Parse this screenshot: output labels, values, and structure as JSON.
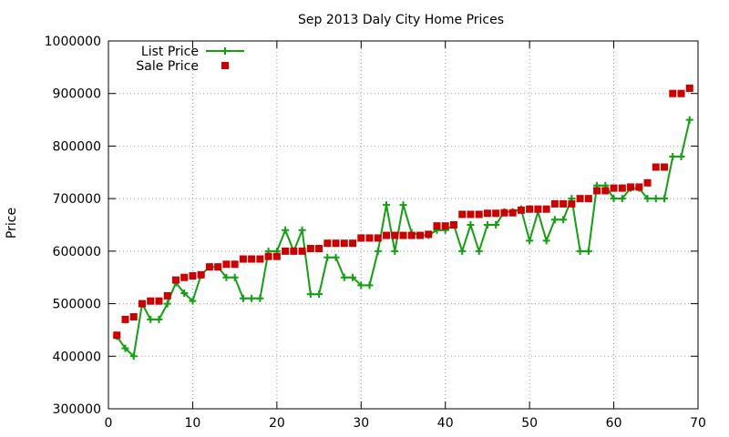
{
  "chart_data": {
    "type": "line",
    "title": "Sep 2013 Daly City Home Prices",
    "xlabel": "",
    "ylabel": "Price",
    "xlim": [
      0,
      70
    ],
    "ylim": [
      300000,
      1000000
    ],
    "xticks": [
      0,
      10,
      20,
      30,
      40,
      50,
      60,
      70
    ],
    "yticks": [
      300000,
      400000,
      500000,
      600000,
      700000,
      800000,
      900000,
      1000000
    ],
    "xtick_labels": [
      "0",
      "10",
      "20",
      "30",
      "40",
      "50",
      "60",
      "70"
    ],
    "ytick_labels": [
      "300000",
      "400000",
      "500000",
      "600000",
      "700000",
      "800000",
      "900000",
      "1000000"
    ],
    "grid": true,
    "legend_position": "top-left",
    "series": [
      {
        "name": "List Price",
        "style": "line+cross",
        "color": "#10a010",
        "x": [
          1,
          2,
          3,
          4,
          5,
          6,
          7,
          8,
          9,
          10,
          11,
          12,
          13,
          14,
          15,
          16,
          17,
          18,
          19,
          20,
          21,
          22,
          23,
          24,
          25,
          26,
          27,
          28,
          29,
          30,
          31,
          32,
          33,
          34,
          35,
          36,
          37,
          38,
          39,
          40,
          41,
          42,
          43,
          44,
          45,
          46,
          47,
          48,
          49,
          50,
          51,
          52,
          53,
          54,
          55,
          56,
          57,
          58,
          59,
          60,
          61,
          62,
          63,
          64,
          65,
          66,
          67,
          68,
          69
        ],
        "values": [
          438000,
          415000,
          400000,
          500000,
          470000,
          470000,
          500000,
          540000,
          520000,
          505000,
          555000,
          570000,
          570000,
          550000,
          550000,
          510000,
          510000,
          510000,
          600000,
          600000,
          640000,
          600000,
          640000,
          518000,
          518000,
          588000,
          588000,
          550000,
          550000,
          535000,
          535000,
          600000,
          688000,
          600000,
          688000,
          635000,
          630000,
          630000,
          640000,
          640000,
          650000,
          600000,
          650000,
          600000,
          650000,
          650000,
          675000,
          675000,
          680000,
          620000,
          675000,
          620000,
          660000,
          660000,
          700000,
          600000,
          600000,
          725000,
          725000,
          700000,
          700000,
          720000,
          720000,
          700000,
          700000,
          700000,
          780000,
          780000,
          850000
        ]
      },
      {
        "name": "Sale Price",
        "style": "square",
        "color": "#cc0000",
        "x": [
          1,
          2,
          3,
          4,
          5,
          6,
          7,
          8,
          9,
          10,
          11,
          12,
          13,
          14,
          15,
          16,
          17,
          18,
          19,
          20,
          21,
          22,
          23,
          24,
          25,
          26,
          27,
          28,
          29,
          30,
          31,
          32,
          33,
          34,
          35,
          36,
          37,
          38,
          39,
          40,
          41,
          42,
          43,
          44,
          45,
          46,
          47,
          48,
          49,
          50,
          51,
          52,
          53,
          54,
          55,
          56,
          57,
          58,
          59,
          60,
          61,
          62,
          63,
          64,
          65,
          66,
          67,
          68,
          69
        ],
        "values": [
          440000,
          470000,
          475000,
          500000,
          505000,
          505000,
          515000,
          545000,
          550000,
          553000,
          555000,
          570000,
          570000,
          575000,
          575000,
          585000,
          585000,
          585000,
          590000,
          590000,
          600000,
          600000,
          600000,
          605000,
          605000,
          615000,
          615000,
          615000,
          615000,
          625000,
          625000,
          625000,
          630000,
          630000,
          630000,
          630000,
          630000,
          632000,
          648000,
          648000,
          650000,
          670000,
          670000,
          670000,
          672000,
          672000,
          673000,
          673000,
          678000,
          680000,
          680000,
          680000,
          690000,
          690000,
          690000,
          700000,
          700000,
          715000,
          715000,
          720000,
          720000,
          722000,
          722000,
          730000,
          760000,
          760000,
          900000,
          900000,
          910000
        ]
      }
    ]
  }
}
